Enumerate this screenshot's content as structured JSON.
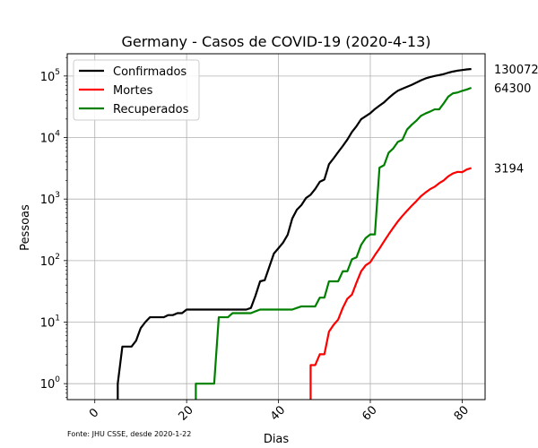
{
  "chart_data": {
    "type": "line",
    "title": "Germany - Casos de COVID-19 (2020-4-13)",
    "xlabel": "Dias",
    "ylabel": "Pessoas",
    "yscale": "log",
    "xlim": [
      -6,
      85
    ],
    "ylim": [
      0.55,
      230000
    ],
    "x_ticks": [
      0,
      20,
      40,
      60,
      80
    ],
    "y_ticks": [
      {
        "value": 1,
        "base": "10",
        "exp": "0"
      },
      {
        "value": 10,
        "base": "10",
        "exp": "1"
      },
      {
        "value": 100,
        "base": "10",
        "exp": "2"
      },
      {
        "value": 1000,
        "base": "10",
        "exp": "3"
      },
      {
        "value": 10000,
        "base": "10",
        "exp": "4"
      },
      {
        "value": 100000,
        "base": "10",
        "exp": "5"
      }
    ],
    "grid": true,
    "legend_position": "top-left",
    "source_note": "Fonte: JHU CSSE, desde 2020-1-22",
    "series": [
      {
        "name": "Confirmados",
        "color": "#000000",
        "end_label": "130072",
        "points": [
          [
            5,
            0.55
          ],
          [
            5,
            1
          ],
          [
            5.5,
            2
          ],
          [
            6,
            4
          ],
          [
            7,
            4
          ],
          [
            8,
            4
          ],
          [
            9,
            5
          ],
          [
            10,
            8
          ],
          [
            11,
            10
          ],
          [
            12,
            12
          ],
          [
            13,
            12
          ],
          [
            14,
            12
          ],
          [
            15,
            12
          ],
          [
            16,
            13
          ],
          [
            17,
            13
          ],
          [
            18,
            14
          ],
          [
            19,
            14
          ],
          [
            20,
            16
          ],
          [
            21,
            16
          ],
          [
            22,
            16
          ],
          [
            23,
            16
          ],
          [
            24,
            16
          ],
          [
            25,
            16
          ],
          [
            26,
            16
          ],
          [
            27,
            16
          ],
          [
            28,
            16
          ],
          [
            29,
            16
          ],
          [
            30,
            16
          ],
          [
            31,
            16
          ],
          [
            32,
            16
          ],
          [
            33,
            16
          ],
          [
            34,
            17
          ],
          [
            35,
            27
          ],
          [
            36,
            46
          ],
          [
            37,
            48
          ],
          [
            38,
            79
          ],
          [
            39,
            130
          ],
          [
            40,
            159
          ],
          [
            41,
            196
          ],
          [
            42,
            262
          ],
          [
            43,
            482
          ],
          [
            44,
            670
          ],
          [
            45,
            799
          ],
          [
            46,
            1040
          ],
          [
            47,
            1176
          ],
          [
            48,
            1457
          ],
          [
            49,
            1908
          ],
          [
            50,
            2078
          ],
          [
            51,
            3675
          ],
          [
            52,
            4585
          ],
          [
            53,
            5795
          ],
          [
            54,
            7272
          ],
          [
            55,
            9257
          ],
          [
            56,
            12327
          ],
          [
            57,
            15320
          ],
          [
            58,
            19848
          ],
          [
            59,
            22213
          ],
          [
            60,
            24873
          ],
          [
            61,
            29056
          ],
          [
            62,
            32986
          ],
          [
            63,
            37323
          ],
          [
            64,
            43938
          ],
          [
            65,
            50871
          ],
          [
            66,
            57695
          ],
          [
            67,
            62095
          ],
          [
            68,
            66885
          ],
          [
            69,
            71808
          ],
          [
            70,
            77872
          ],
          [
            71,
            84794
          ],
          [
            72,
            91159
          ],
          [
            73,
            96092
          ],
          [
            74,
            100123
          ],
          [
            75,
            103374
          ],
          [
            76,
            107663
          ],
          [
            77,
            113296
          ],
          [
            78,
            118181
          ],
          [
            79,
            122171
          ],
          [
            80,
            124908
          ],
          [
            81,
            127854
          ],
          [
            82,
            130072
          ]
        ]
      },
      {
        "name": "Mortes",
        "color": "#ff0000",
        "end_label": "3194",
        "points": [
          [
            47,
            0.55
          ],
          [
            47,
            2
          ],
          [
            48,
            2
          ],
          [
            49,
            3
          ],
          [
            50,
            3
          ],
          [
            51,
            7
          ],
          [
            52,
            9
          ],
          [
            53,
            11
          ],
          [
            54,
            17
          ],
          [
            55,
            24
          ],
          [
            56,
            28
          ],
          [
            57,
            44
          ],
          [
            58,
            67
          ],
          [
            59,
            84
          ],
          [
            60,
            94
          ],
          [
            61,
            123
          ],
          [
            62,
            157
          ],
          [
            63,
            206
          ],
          [
            64,
            267
          ],
          [
            65,
            342
          ],
          [
            66,
            433
          ],
          [
            67,
            533
          ],
          [
            68,
            645
          ],
          [
            69,
            775
          ],
          [
            70,
            920
          ],
          [
            71,
            1107
          ],
          [
            72,
            1275
          ],
          [
            73,
            1444
          ],
          [
            74,
            1584
          ],
          [
            75,
            1810
          ],
          [
            76,
            2016
          ],
          [
            77,
            2349
          ],
          [
            78,
            2607
          ],
          [
            79,
            2767
          ],
          [
            80,
            2736
          ],
          [
            81,
            3022
          ],
          [
            82,
            3194
          ]
        ]
      },
      {
        "name": "Recuperados",
        "color": "#008000",
        "end_label": "64300",
        "points": [
          [
            22,
            0.55
          ],
          [
            22,
            1
          ],
          [
            23,
            1
          ],
          [
            24,
            1
          ],
          [
            25,
            1
          ],
          [
            26,
            1
          ],
          [
            27,
            12
          ],
          [
            28,
            12
          ],
          [
            29,
            12
          ],
          [
            30,
            14
          ],
          [
            31,
            14
          ],
          [
            32,
            14
          ],
          [
            33,
            14
          ],
          [
            34,
            14
          ],
          [
            35,
            15
          ],
          [
            36,
            16
          ],
          [
            37,
            16
          ],
          [
            38,
            16
          ],
          [
            39,
            16
          ],
          [
            40,
            16
          ],
          [
            41,
            16
          ],
          [
            42,
            16
          ],
          [
            43,
            16
          ],
          [
            44,
            17
          ],
          [
            45,
            18
          ],
          [
            46,
            18
          ],
          [
            47,
            18
          ],
          [
            48,
            18
          ],
          [
            49,
            25
          ],
          [
            50,
            25
          ],
          [
            51,
            46
          ],
          [
            52,
            46
          ],
          [
            53,
            46
          ],
          [
            54,
            67
          ],
          [
            55,
            67
          ],
          [
            56,
            105
          ],
          [
            57,
            113
          ],
          [
            58,
            180
          ],
          [
            59,
            233
          ],
          [
            60,
            266
          ],
          [
            61,
            266
          ],
          [
            62,
            3243
          ],
          [
            63,
            3547
          ],
          [
            64,
            5673
          ],
          [
            65,
            6658
          ],
          [
            66,
            8481
          ],
          [
            67,
            9211
          ],
          [
            68,
            13500
          ],
          [
            69,
            16100
          ],
          [
            70,
            18700
          ],
          [
            71,
            22440
          ],
          [
            72,
            24575
          ],
          [
            73,
            26400
          ],
          [
            74,
            28700
          ],
          [
            75,
            28700
          ],
          [
            76,
            36081
          ],
          [
            77,
            46300
          ],
          [
            78,
            52407
          ],
          [
            79,
            53913
          ],
          [
            80,
            57400
          ],
          [
            81,
            60300
          ],
          [
            82,
            64300
          ]
        ]
      }
    ]
  }
}
